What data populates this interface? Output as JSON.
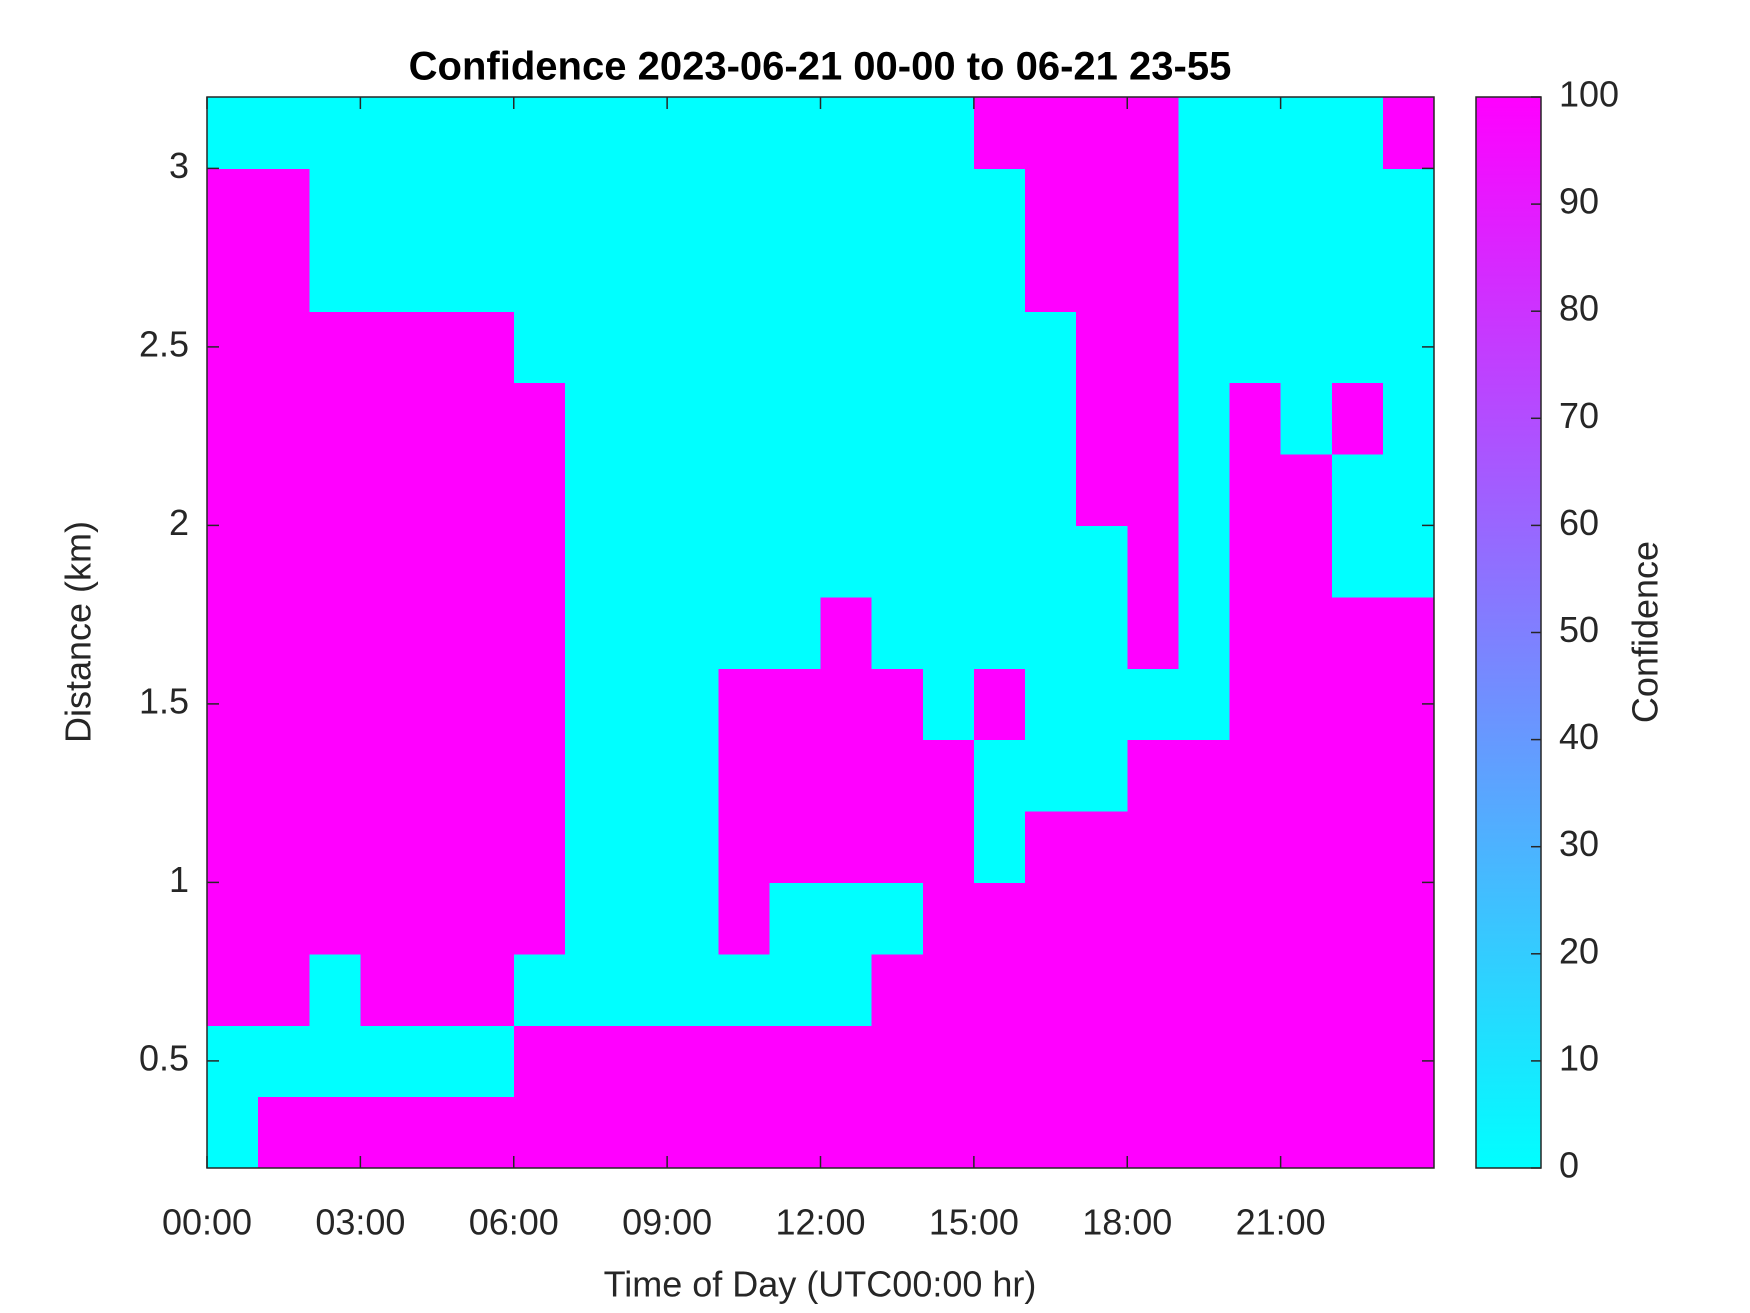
{
  "chart_data": {
    "type": "heatmap",
    "title": "Confidence 2023-06-21 00-00 to 06-21 23-55",
    "x_label": "Time of Day (UTC00:00 hr)",
    "y_label": "Distance (km)",
    "colorbar_label": "Confidence",
    "x": [
      0.5,
      1.5,
      2.5,
      3.5,
      4.5,
      5.5,
      6.5,
      7.5,
      8.5,
      9.5,
      10.5,
      11.5,
      12.5,
      13.5,
      14.5,
      15.5,
      16.5,
      17.5,
      18.5,
      19.5,
      20.5,
      21.5,
      22.5,
      23.5
    ],
    "y": [
      0.3,
      0.5,
      0.7,
      0.9,
      1.1,
      1.3,
      1.5,
      1.7,
      1.9,
      2.1,
      2.3,
      2.5,
      2.7,
      2.9,
      3.1
    ],
    "z": [
      [
        0,
        100,
        100,
        100,
        100,
        100,
        100,
        100,
        100,
        100,
        100,
        100,
        100,
        100,
        100,
        100,
        100,
        100,
        100,
        100,
        100,
        100,
        100,
        100
      ],
      [
        0,
        0,
        0,
        0,
        0,
        0,
        100,
        100,
        100,
        100,
        100,
        100,
        100,
        100,
        100,
        100,
        100,
        100,
        100,
        100,
        100,
        100,
        100,
        100
      ],
      [
        100,
        100,
        0,
        100,
        100,
        100,
        0,
        0,
        0,
        0,
        0,
        0,
        0,
        100,
        100,
        100,
        100,
        100,
        100,
        100,
        100,
        100,
        100,
        100
      ],
      [
        100,
        100,
        100,
        100,
        100,
        100,
        100,
        0,
        0,
        0,
        100,
        0,
        0,
        0,
        100,
        100,
        100,
        100,
        100,
        100,
        100,
        100,
        100,
        100
      ],
      [
        100,
        100,
        100,
        100,
        100,
        100,
        100,
        0,
        0,
        0,
        100,
        100,
        100,
        100,
        100,
        0,
        100,
        100,
        100,
        100,
        100,
        100,
        100,
        100
      ],
      [
        100,
        100,
        100,
        100,
        100,
        100,
        100,
        0,
        0,
        0,
        100,
        100,
        100,
        100,
        100,
        0,
        0,
        0,
        100,
        100,
        100,
        100,
        100,
        100
      ],
      [
        100,
        100,
        100,
        100,
        100,
        100,
        100,
        0,
        0,
        0,
        100,
        100,
        100,
        100,
        0,
        100,
        0,
        0,
        0,
        0,
        100,
        100,
        100,
        100
      ],
      [
        100,
        100,
        100,
        100,
        100,
        100,
        100,
        0,
        0,
        0,
        0,
        0,
        100,
        0,
        0,
        0,
        0,
        0,
        100,
        0,
        100,
        100,
        100,
        100
      ],
      [
        100,
        100,
        100,
        100,
        100,
        100,
        100,
        0,
        0,
        0,
        0,
        0,
        0,
        0,
        0,
        0,
        0,
        0,
        100,
        0,
        100,
        100,
        0,
        0
      ],
      [
        100,
        100,
        100,
        100,
        100,
        100,
        100,
        0,
        0,
        0,
        0,
        0,
        0,
        0,
        0,
        0,
        0,
        100,
        100,
        0,
        100,
        100,
        0,
        0
      ],
      [
        100,
        100,
        100,
        100,
        100,
        100,
        100,
        0,
        0,
        0,
        0,
        0,
        0,
        0,
        0,
        0,
        0,
        100,
        100,
        0,
        100,
        0,
        100,
        0
      ],
      [
        100,
        100,
        100,
        100,
        100,
        100,
        0,
        0,
        0,
        0,
        0,
        0,
        0,
        0,
        0,
        0,
        0,
        100,
        100,
        0,
        0,
        0,
        0,
        0
      ],
      [
        100,
        100,
        0,
        0,
        0,
        0,
        0,
        0,
        0,
        0,
        0,
        0,
        0,
        0,
        0,
        0,
        100,
        100,
        100,
        0,
        0,
        0,
        0,
        0
      ],
      [
        100,
        100,
        0,
        0,
        0,
        0,
        0,
        0,
        0,
        0,
        0,
        0,
        0,
        0,
        0,
        0,
        100,
        100,
        100,
        0,
        0,
        0,
        0,
        0
      ],
      [
        0,
        0,
        0,
        0,
        0,
        0,
        0,
        0,
        0,
        0,
        0,
        0,
        0,
        0,
        0,
        100,
        100,
        100,
        100,
        0,
        0,
        0,
        0,
        100
      ]
    ],
    "xlim": [
      0,
      24
    ],
    "xticks": [
      {
        "value": 0,
        "label": "00:00"
      },
      {
        "value": 3,
        "label": "03:00"
      },
      {
        "value": 6,
        "label": "06:00"
      },
      {
        "value": 9,
        "label": "09:00"
      },
      {
        "value": 12,
        "label": "12:00"
      },
      {
        "value": 15,
        "label": "15:00"
      },
      {
        "value": 18,
        "label": "18:00"
      },
      {
        "value": 21,
        "label": "21:00"
      }
    ],
    "ylim": [
      0.2,
      3.2
    ],
    "yticks": [
      0.5,
      1,
      1.5,
      2,
      2.5,
      3
    ],
    "clim": [
      0,
      100
    ],
    "cticks": [
      0,
      10,
      20,
      30,
      40,
      50,
      60,
      70,
      80,
      90,
      100
    ],
    "colormap": [
      "#00ffff",
      "#ff00ff"
    ]
  }
}
